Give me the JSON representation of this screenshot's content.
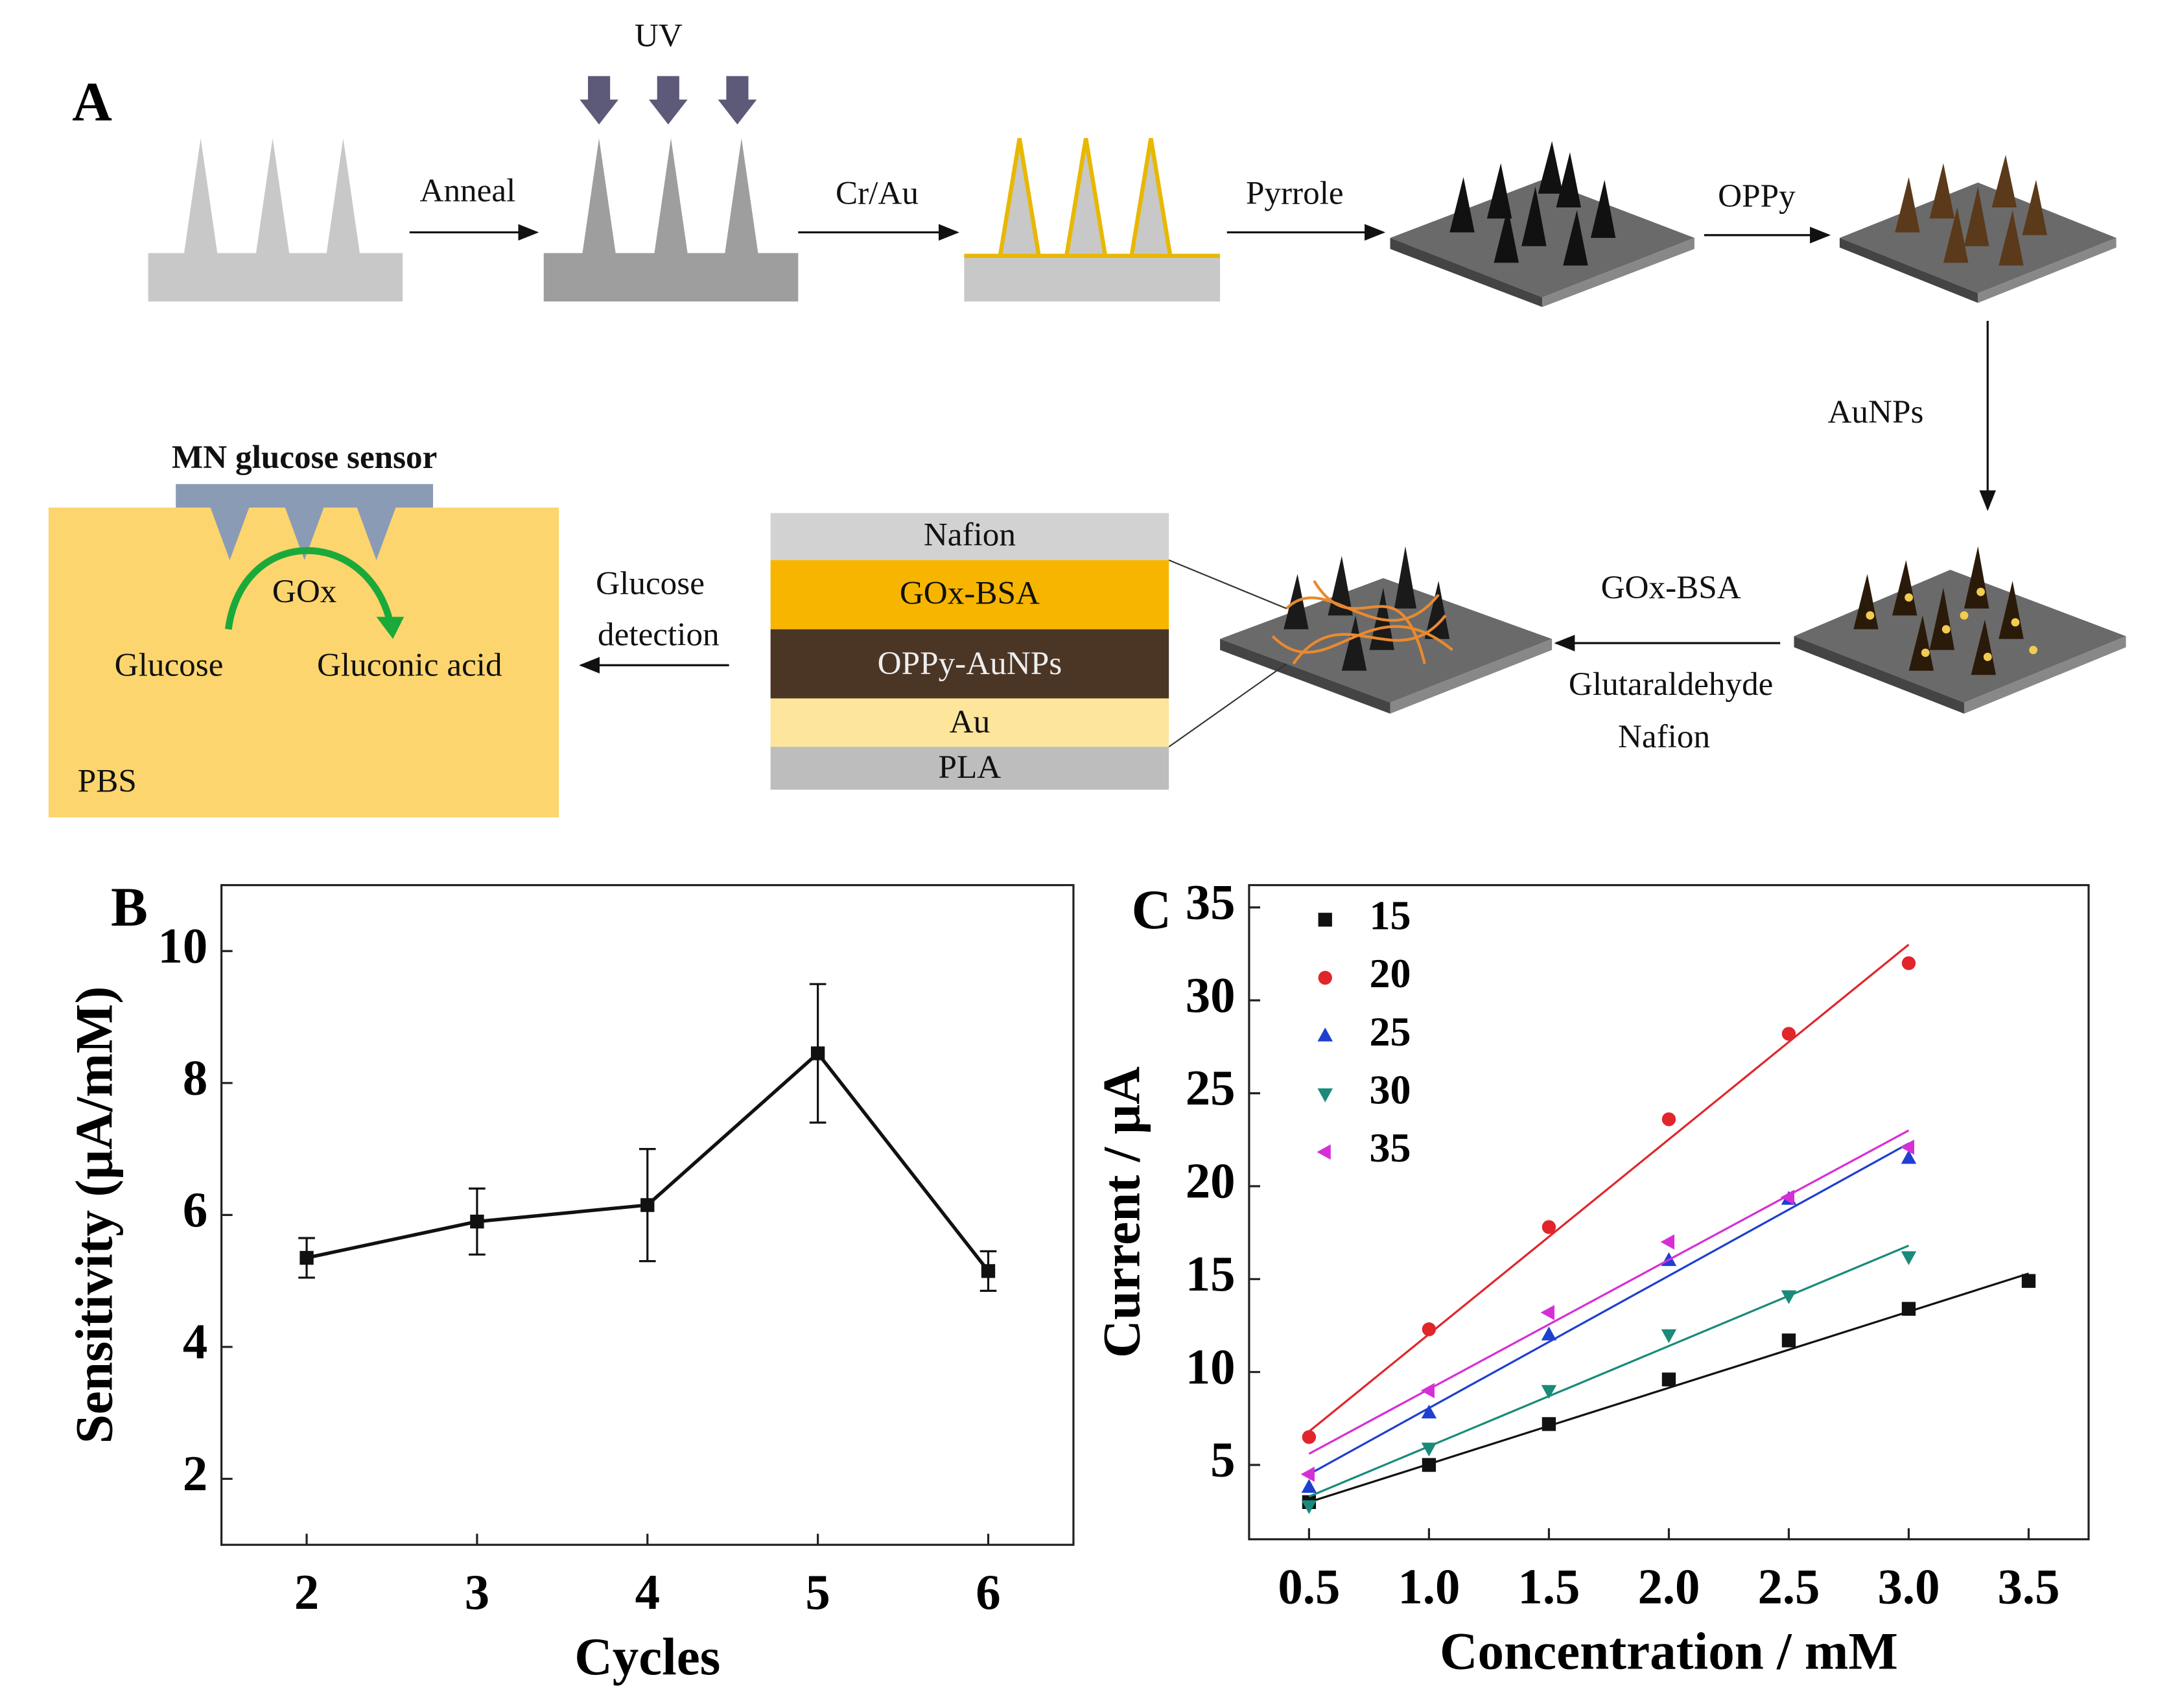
{
  "diagram": {
    "panel": "A",
    "uv": "UV",
    "steps": [
      "Anneal",
      "Cr/Au",
      "Pyrrole",
      "OPPy",
      "AuNPs"
    ],
    "gox_step": [
      "GOx-BSA",
      "Glutaraldehyde",
      "Nafion"
    ],
    "detection": [
      "Glucose",
      "detection"
    ],
    "layers": [
      "Nafion",
      "GOx-BSA",
      "OPPy-AuNPs",
      "Au",
      "PLA"
    ],
    "sensor": {
      "title": "MN glucose sensor",
      "enzyme": "GOx",
      "substrate": "Glucose",
      "product": "Gluconic acid",
      "medium": "PBS"
    }
  },
  "chart_data": [
    {
      "type": "line",
      "panel": "B",
      "x_label": "Cycles",
      "y_label": "Sensitivity (μA/mM)",
      "x": [
        2,
        3,
        4,
        5,
        6
      ],
      "values": [
        5.35,
        5.9,
        6.15,
        8.45,
        5.15
      ],
      "errors": [
        0.3,
        0.5,
        0.85,
        1.05,
        0.3
      ],
      "color": "#111111",
      "xlim": [
        1.5,
        6.5
      ],
      "xticks": [
        2,
        3,
        4,
        5,
        6
      ],
      "ylim": [
        1,
        11
      ],
      "yticks": [
        2,
        4,
        6,
        8,
        10
      ]
    },
    {
      "type": "scatter",
      "panel": "C",
      "x_label": "Concentration / mM",
      "y_label": "Current / μA",
      "xlim": [
        0.25,
        3.75
      ],
      "ylim": [
        1,
        36.2
      ],
      "xticks": [
        0.5,
        {
          "value": 1,
          "label": "1.0"
        },
        1.5,
        {
          "value": 2,
          "label": "2.0"
        },
        2.5,
        {
          "value": 3,
          "label": "3.0"
        },
        3.5
      ],
      "yticks": [
        5,
        10,
        15,
        20,
        25,
        30,
        35
      ],
      "legend": "upper left",
      "series": [
        {
          "name": "15",
          "color": "#111111",
          "marker": "square",
          "x": [
            0.5,
            1,
            1.5,
            2,
            2.5,
            3,
            3.5
          ],
          "values": [
            3.0,
            5.0,
            7.2,
            9.6,
            11.7,
            13.4,
            14.9
          ],
          "fit_x": [
            0.5,
            3.5
          ],
          "fit_values": [
            3.0,
            15.3
          ]
        },
        {
          "name": "20",
          "color": "#e0252b",
          "marker": "circle",
          "x": [
            0.5,
            1,
            1.5,
            2,
            2.5,
            3
          ],
          "values": [
            6.5,
            12.3,
            17.8,
            23.6,
            28.2,
            32.0
          ],
          "fit_x": [
            0.5,
            3
          ],
          "fit_values": [
            6.8,
            33.0
          ]
        },
        {
          "name": "25",
          "color": "#1f3fd0",
          "marker": "triangle-up",
          "x": [
            0.5,
            1,
            1.5,
            2,
            2.5,
            3
          ],
          "values": [
            3.8,
            7.8,
            12.0,
            16.0,
            19.3,
            21.5
          ],
          "fit_x": [
            0.5,
            3
          ],
          "fit_values": [
            4.5,
            22.3
          ]
        },
        {
          "name": "30",
          "color": "#1a8a7a",
          "marker": "triangle-down",
          "x": [
            0.5,
            1,
            1.5,
            2,
            2.5,
            3
          ],
          "values": [
            2.8,
            5.9,
            9.0,
            12.0,
            14.1,
            16.2
          ],
          "fit_x": [
            0.5,
            3
          ],
          "fit_values": [
            3.3,
            16.8
          ]
        },
        {
          "name": "35",
          "color": "#d62fd6",
          "marker": "triangle-left",
          "x": [
            0.5,
            1,
            1.5,
            2,
            2.5,
            3
          ],
          "values": [
            4.5,
            9.0,
            13.2,
            17.0,
            19.4,
            22.1
          ],
          "fit_x": [
            0.5,
            3
          ],
          "fit_values": [
            5.6,
            23.0
          ]
        }
      ]
    }
  ]
}
